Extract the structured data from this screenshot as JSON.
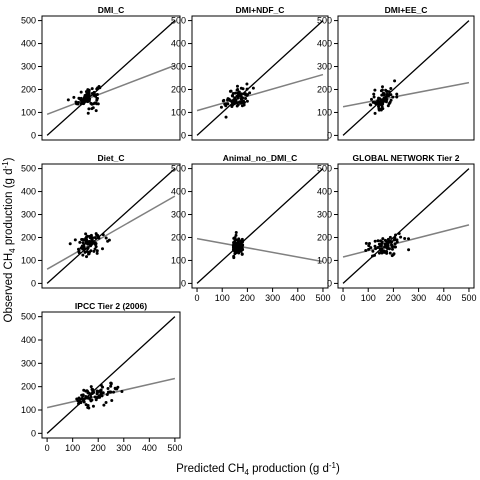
{
  "figure": {
    "xlabel": "Predicted CH4 production (g d-1)",
    "ylabel": "Observed CH4 production (g d-1)",
    "axis_label_parts": {
      "base": "CH",
      "sub": "4",
      "prefix_x": "Predicted ",
      "prefix_y": "Observed ",
      "middle": " production (g d",
      "sup": "-1",
      "end": ")"
    }
  },
  "chart_data": [
    {
      "type": "scatter",
      "title": "DMI_C",
      "xlim": [
        0,
        500
      ],
      "ylim": [
        0,
        500
      ],
      "ticks": [
        0,
        100,
        200,
        300,
        400,
        500
      ],
      "identity_line": [
        [
          0,
          0
        ],
        [
          500,
          500
        ]
      ],
      "regression_line": [
        [
          0,
          92
        ],
        [
          500,
          305
        ]
      ],
      "cluster": {
        "x_center": 160,
        "x_spread": 22,
        "y_center": 165,
        "y_spread": 30,
        "n": 80
      }
    },
    {
      "type": "scatter",
      "title": "DMI+NDF_C",
      "xlim": [
        0,
        500
      ],
      "ylim": [
        0,
        500
      ],
      "ticks": [
        0,
        100,
        200,
        300,
        400,
        500
      ],
      "identity_line": [
        [
          0,
          0
        ],
        [
          500,
          500
        ]
      ],
      "regression_line": [
        [
          0,
          108
        ],
        [
          500,
          265
        ]
      ],
      "cluster": {
        "x_center": 160,
        "x_spread": 25,
        "y_center": 163,
        "y_spread": 30,
        "n": 80
      }
    },
    {
      "type": "scatter",
      "title": "DMI+EE_C",
      "xlim": [
        0,
        500
      ],
      "ylim": [
        0,
        500
      ],
      "ticks": [
        0,
        100,
        200,
        300,
        400,
        500
      ],
      "identity_line": [
        [
          0,
          0
        ],
        [
          500,
          500
        ]
      ],
      "regression_line": [
        [
          0,
          125
        ],
        [
          500,
          230
        ]
      ],
      "cluster": {
        "x_center": 158,
        "x_spread": 25,
        "y_center": 160,
        "y_spread": 32,
        "n": 80
      }
    },
    {
      "type": "scatter",
      "title": "Diet_C",
      "xlim": [
        0,
        500
      ],
      "ylim": [
        0,
        500
      ],
      "ticks": [
        0,
        100,
        200,
        300,
        400,
        500
      ],
      "identity_line": [
        [
          0,
          0
        ],
        [
          500,
          500
        ]
      ],
      "regression_line": [
        [
          0,
          62
        ],
        [
          500,
          380
        ]
      ],
      "cluster": {
        "x_center": 160,
        "x_spread": 30,
        "y_center": 165,
        "y_spread": 32,
        "n": 80
      }
    },
    {
      "type": "scatter",
      "title": "Animal_no_DMI_C",
      "xlim": [
        0,
        500
      ],
      "ylim": [
        0,
        500
      ],
      "ticks": [
        0,
        100,
        200,
        300,
        400,
        500
      ],
      "identity_line": [
        [
          0,
          0
        ],
        [
          500,
          500
        ]
      ],
      "regression_line": [
        [
          0,
          195
        ],
        [
          500,
          95
        ]
      ],
      "cluster": {
        "x_center": 163,
        "x_spread": 22,
        "y_center": 165,
        "y_spread": 28,
        "n": 80,
        "columns": [
          145,
          150,
          155,
          165,
          175,
          180
        ]
      }
    },
    {
      "type": "scatter",
      "title": "GLOBAL NETWORK Tier 2",
      "xlim": [
        0,
        500
      ],
      "ylim": [
        0,
        500
      ],
      "ticks": [
        0,
        100,
        200,
        300,
        400,
        500
      ],
      "identity_line": [
        [
          0,
          0
        ],
        [
          500,
          500
        ]
      ],
      "regression_line": [
        [
          0,
          115
        ],
        [
          500,
          255
        ]
      ],
      "cluster": {
        "x_center": 165,
        "x_spread": 38,
        "y_center": 165,
        "y_spread": 28,
        "n": 80
      }
    },
    {
      "type": "scatter",
      "title": "IPCC Tier 2 (2006)",
      "xlim": [
        0,
        500
      ],
      "ylim": [
        0,
        500
      ],
      "ticks": [
        0,
        100,
        200,
        300,
        400,
        500
      ],
      "identity_line": [
        [
          0,
          0
        ],
        [
          500,
          500
        ]
      ],
      "regression_line": [
        [
          0,
          110
        ],
        [
          500,
          235
        ]
      ],
      "cluster": {
        "x_center": 190,
        "x_spread": 45,
        "y_center": 165,
        "y_spread": 28,
        "n": 80
      }
    }
  ],
  "colors": {
    "points": "#000000",
    "identity": "#000000",
    "regression": "#808080",
    "frame": "#000000"
  }
}
